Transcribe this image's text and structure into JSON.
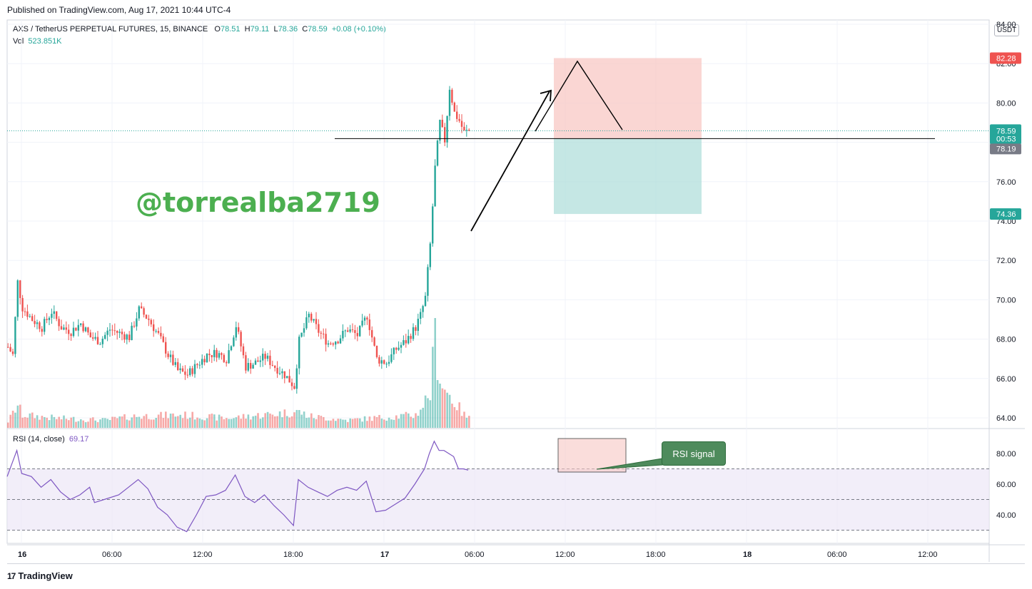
{
  "header": {
    "published": "Published on TradingView.com, Aug 17, 2021 10:44 UTC-4"
  },
  "legend": {
    "symbol": "AXS / TetherUS PERPETUAL FUTURES, 15, BINANCE",
    "o_label": "O",
    "o": "78.51",
    "h_label": "H",
    "h": "79.11",
    "l_label": "L",
    "l": "78.36",
    "c_label": "C",
    "c": "78.59",
    "change": "+0.08 (+0.10%)",
    "vol_label": "Vol",
    "vol": "523.851K"
  },
  "rsi_legend": {
    "label": "RSI (14, close)",
    "value": "69.17"
  },
  "watermark": "@torrealba2719",
  "currency": "USDT",
  "rsi_signal": "RSI signal",
  "footer": {
    "brand": "TradingView",
    "logo": "17"
  },
  "colors": {
    "up": "#26a69a",
    "down": "#ef5350",
    "rsi": "#7e57c2",
    "stop_zone": "#f8c8c4",
    "target_zone": "#b2dfdb",
    "watermark": "#4caf50"
  },
  "price_labels": {
    "stop": "82.28",
    "last": "78.59",
    "countdown": "00:53",
    "entry": "78.19",
    "target": "74.36"
  },
  "chart_data": [
    {
      "type": "candlestick",
      "title": "AXS / TetherUS PERPETUAL FUTURES, 15, BINANCE",
      "x_ticks": [
        "16",
        "06:00",
        "12:00",
        "18:00",
        "17",
        "06:00",
        "12:00",
        "18:00",
        "18",
        "06:00",
        "12:00"
      ],
      "y_ticks": [
        64,
        66,
        68,
        70,
        72,
        74,
        76,
        78,
        80,
        82,
        84
      ],
      "ylim": [
        63.5,
        84.2
      ],
      "close_path": [
        [
          0,
          67.6
        ],
        [
          2,
          67.2
        ],
        [
          4,
          70.9
        ],
        [
          6,
          69.6
        ],
        [
          10,
          69.0
        ],
        [
          14,
          68.6
        ],
        [
          18,
          69.4
        ],
        [
          22,
          68.6
        ],
        [
          26,
          68.4
        ],
        [
          30,
          68.8
        ],
        [
          34,
          68.1
        ],
        [
          38,
          67.9
        ],
        [
          42,
          68.5
        ],
        [
          46,
          68.3
        ],
        [
          50,
          68.1
        ],
        [
          54,
          69.5
        ],
        [
          58,
          69.0
        ],
        [
          62,
          68.2
        ],
        [
          66,
          67.2
        ],
        [
          70,
          66.4
        ],
        [
          74,
          66.2
        ],
        [
          78,
          66.7
        ],
        [
          82,
          67.2
        ],
        [
          86,
          67.3
        ],
        [
          90,
          67.0
        ],
        [
          94,
          68.7
        ],
        [
          98,
          66.6
        ],
        [
          102,
          66.8
        ],
        [
          106,
          67.1
        ],
        [
          110,
          66.6
        ],
        [
          114,
          66.2
        ],
        [
          118,
          65.6
        ],
        [
          120,
          67.9
        ],
        [
          124,
          69.2
        ],
        [
          128,
          68.4
        ],
        [
          132,
          67.8
        ],
        [
          136,
          68.0
        ],
        [
          140,
          68.5
        ],
        [
          144,
          68.2
        ],
        [
          148,
          69.2
        ],
        [
          152,
          67.0
        ],
        [
          156,
          66.8
        ],
        [
          160,
          67.5
        ],
        [
          164,
          67.9
        ],
        [
          168,
          68.6
        ],
        [
          170,
          69.2
        ],
        [
          172,
          70.1
        ],
        [
          174,
          72.8
        ],
        [
          176,
          76.7
        ],
        [
          178,
          79.0
        ],
        [
          180,
          78.1
        ],
        [
          182,
          80.8
        ],
        [
          184,
          79.5
        ],
        [
          186,
          79.1
        ],
        [
          188,
          78.5
        ],
        [
          190,
          78.59
        ]
      ],
      "volume_profile": [
        [
          0,
          10
        ],
        [
          4,
          35
        ],
        [
          6,
          20
        ],
        [
          20,
          15
        ],
        [
          40,
          12
        ],
        [
          52,
          18
        ],
        [
          72,
          20
        ],
        [
          90,
          15
        ],
        [
          120,
          25
        ],
        [
          124,
          18
        ],
        [
          140,
          12
        ],
        [
          150,
          15
        ],
        [
          168,
          20
        ],
        [
          170,
          30
        ],
        [
          174,
          55
        ],
        [
          176,
          140
        ],
        [
          178,
          80
        ],
        [
          180,
          60
        ],
        [
          182,
          50
        ],
        [
          184,
          40
        ],
        [
          186,
          30
        ],
        [
          188,
          20
        ],
        [
          190,
          15
        ]
      ],
      "position_tool": {
        "stop": 82.28,
        "entry": 78.19,
        "target": 74.36
      },
      "horizontal_line": 78.19,
      "last_price": 78.59
    },
    {
      "type": "line",
      "title": "RSI (14, close)",
      "y_ticks": [
        40,
        60,
        80
      ],
      "bands": [
        30,
        50,
        70
      ],
      "ylim": [
        27,
        93
      ],
      "last_value": 69.17,
      "values": [
        [
          0,
          65
        ],
        [
          4,
          82
        ],
        [
          6,
          67
        ],
        [
          10,
          65
        ],
        [
          14,
          58
        ],
        [
          18,
          63
        ],
        [
          22,
          55
        ],
        [
          26,
          50
        ],
        [
          30,
          53
        ],
        [
          34,
          58
        ],
        [
          36,
          48
        ],
        [
          40,
          50
        ],
        [
          46,
          53
        ],
        [
          50,
          58
        ],
        [
          54,
          63
        ],
        [
          58,
          57
        ],
        [
          62,
          45
        ],
        [
          66,
          40
        ],
        [
          70,
          32
        ],
        [
          74,
          29
        ],
        [
          78,
          40
        ],
        [
          82,
          52
        ],
        [
          86,
          53
        ],
        [
          90,
          56
        ],
        [
          94,
          66
        ],
        [
          98,
          52
        ],
        [
          102,
          48
        ],
        [
          106,
          53
        ],
        [
          110,
          46
        ],
        [
          114,
          40
        ],
        [
          118,
          33
        ],
        [
          120,
          63
        ],
        [
          124,
          58
        ],
        [
          128,
          55
        ],
        [
          132,
          52
        ],
        [
          136,
          56
        ],
        [
          140,
          58
        ],
        [
          144,
          56
        ],
        [
          148,
          62
        ],
        [
          152,
          42
        ],
        [
          156,
          43
        ],
        [
          160,
          47
        ],
        [
          164,
          51
        ],
        [
          168,
          60
        ],
        [
          172,
          70
        ],
        [
          174,
          80
        ],
        [
          176,
          88
        ],
        [
          178,
          82
        ],
        [
          180,
          82
        ],
        [
          182,
          80
        ],
        [
          184,
          78
        ],
        [
          186,
          70
        ],
        [
          188,
          70
        ],
        [
          190,
          69.17
        ]
      ]
    }
  ]
}
